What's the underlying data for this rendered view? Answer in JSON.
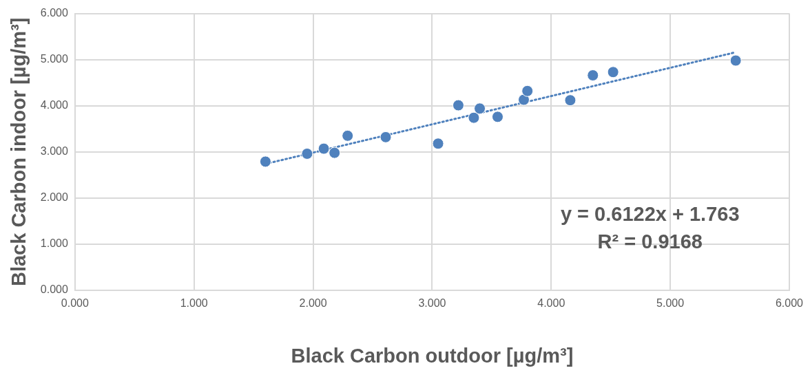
{
  "chart_data": {
    "type": "scatter",
    "xlabel": "Black Carbon outdoor [µg/m³]",
    "ylabel": "Black Carbon indoor [µg/m³]",
    "xlim": [
      0,
      6
    ],
    "ylim": [
      0,
      6
    ],
    "xticks": [
      {
        "value": 0,
        "label": "0.000"
      },
      {
        "value": 1,
        "label": "1.000"
      },
      {
        "value": 2,
        "label": "2.000"
      },
      {
        "value": 3,
        "label": "3.000"
      },
      {
        "value": 4,
        "label": "4.000"
      },
      {
        "value": 5,
        "label": "5.000"
      },
      {
        "value": 6,
        "label": "6.000"
      }
    ],
    "yticks": [
      {
        "value": 0,
        "label": "0.000"
      },
      {
        "value": 1,
        "label": "1.000"
      },
      {
        "value": 2,
        "label": "2.000"
      },
      {
        "value": 3,
        "label": "3.000"
      },
      {
        "value": 4,
        "label": "4.000"
      },
      {
        "value": 5,
        "label": "5.000"
      },
      {
        "value": 6,
        "label": "6.000"
      }
    ],
    "grid": true,
    "legend": false,
    "marker": "circle",
    "series": [
      {
        "type": "scatter",
        "color": "#4f81bd",
        "x": [
          1.6,
          1.95,
          2.09,
          2.18,
          2.29,
          2.61,
          3.05,
          3.22,
          3.35,
          3.4,
          3.55,
          3.77,
          3.8,
          4.16,
          4.35,
          4.52,
          5.55
        ],
        "values": [
          2.79,
          2.96,
          3.07,
          2.98,
          3.35,
          3.32,
          3.18,
          4.01,
          3.74,
          3.94,
          3.76,
          4.13,
          4.32,
          4.12,
          4.66,
          4.73,
          4.98
        ]
      },
      {
        "type": "line",
        "color": "#4f81bd",
        "marker": "none",
        "line_style": "dotted",
        "x": [
          1.6,
          5.55
        ],
        "values": [
          2.74,
          5.16
        ]
      }
    ],
    "annotations": [
      "y = 0.6122x + 1.763",
      "R² = 0.9168"
    ]
  }
}
